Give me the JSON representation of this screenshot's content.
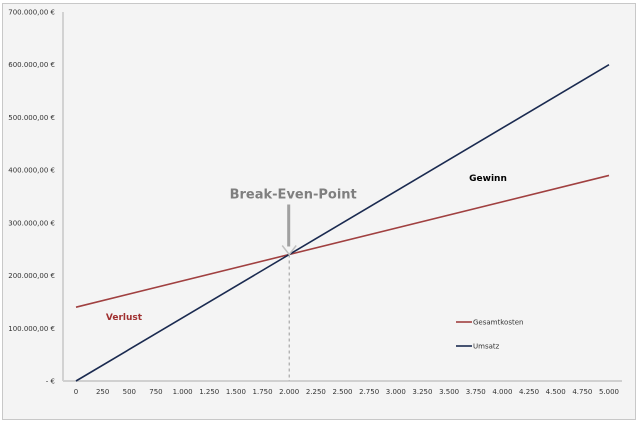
{
  "chart_data": {
    "type": "line",
    "title": "",
    "xlabel": "",
    "ylabel": "",
    "x_ticks": [
      "0",
      "250",
      "500",
      "750",
      "1.000",
      "1.250",
      "1.500",
      "1.750",
      "2.000",
      "2.250",
      "2.500",
      "2.750",
      "3.000",
      "3.250",
      "3.500",
      "3.750",
      "4.000",
      "4.250",
      "4.500",
      "4.750",
      "5.000"
    ],
    "y_ticks": [
      "- €",
      "100.000,00 €",
      "200.000,00 €",
      "300.000,00 €",
      "400.000,00 €",
      "500.000,00 €",
      "600.000,00 €",
      "700.000,00 €"
    ],
    "xlim": [
      0,
      5000
    ],
    "ylim": [
      0,
      700000
    ],
    "grid": false,
    "legend_position": "bottom-right",
    "series": [
      {
        "name": "Gesamtkosten",
        "color": "#a04040",
        "x": [
          0,
          5000
        ],
        "y": [
          140000,
          390000
        ]
      },
      {
        "name": "Umsatz",
        "color": "#1a2a50",
        "x": [
          0,
          5000
        ],
        "y": [
          0,
          600000
        ]
      }
    ],
    "annotations": {
      "break_even": {
        "label": "Break-Even-Point",
        "x": 2000,
        "y": 240000,
        "color": "#7f7f7f"
      },
      "gewinn": {
        "label": "Gewinn",
        "color": "#000000"
      },
      "verlust": {
        "label": "Verlust",
        "color": "#a03030"
      }
    }
  }
}
